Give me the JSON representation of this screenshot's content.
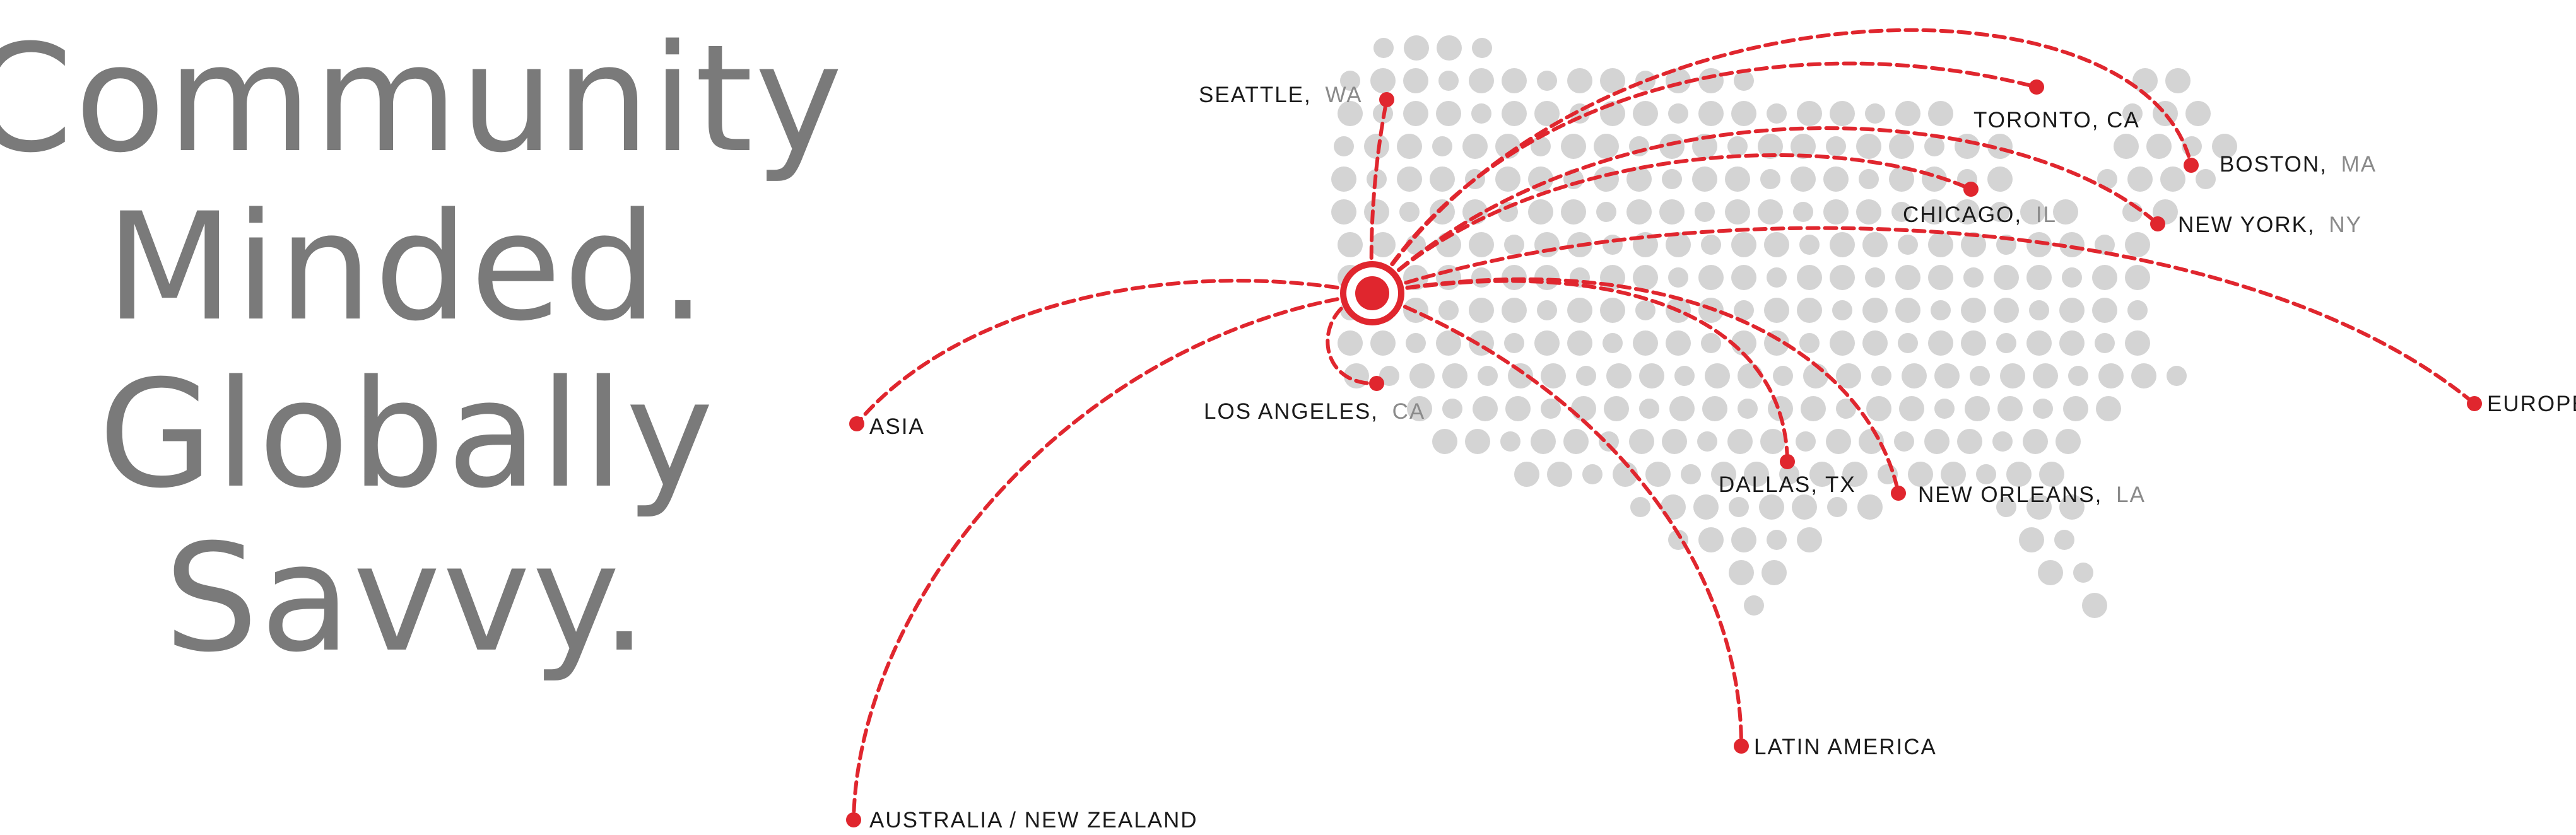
{
  "headline": {
    "lines": [
      "Community",
      "Minded.",
      "Globally",
      "Savvy."
    ]
  },
  "colors": {
    "route": "#e0262e",
    "headline": "#7a7a7a",
    "map_dots": "#d4d4d4",
    "label_text": "#1a1a1a",
    "label_region": "#8a8a8a"
  },
  "hub": {
    "icon": "hub-target-icon"
  },
  "destinations": [
    {
      "id": "seattle",
      "name": "SEATTLE,",
      "region": "WA"
    },
    {
      "id": "toronto",
      "name": "TORONTO, CA",
      "region": ""
    },
    {
      "id": "boston",
      "name": "BOSTON,",
      "region": "MA"
    },
    {
      "id": "chicago",
      "name": "CHICAGO,",
      "region": "IL"
    },
    {
      "id": "new-york",
      "name": "NEW YORK,",
      "region": "NY"
    },
    {
      "id": "europe",
      "name": "EUROPE",
      "region": ""
    },
    {
      "id": "los-angeles",
      "name": "LOS ANGELES,",
      "region": "CA"
    },
    {
      "id": "asia",
      "name": "ASIA",
      "region": ""
    },
    {
      "id": "dallas",
      "name": "DALLAS, TX",
      "region": ""
    },
    {
      "id": "new-orleans",
      "name": "NEW ORLEANS,",
      "region": "LA"
    },
    {
      "id": "latin-america",
      "name": "LATIN AMERICA",
      "region": ""
    },
    {
      "id": "australia",
      "name": "AUSTRALIA / NEW ZEALAND",
      "region": ""
    }
  ]
}
